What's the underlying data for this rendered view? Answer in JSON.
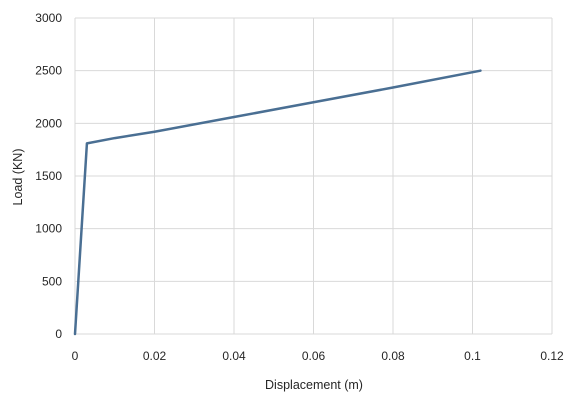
{
  "chart_data": {
    "type": "line",
    "title": "",
    "xlabel": "Displacement (m)",
    "ylabel": "Load (KN)",
    "xlim": [
      0,
      0.12
    ],
    "ylim": [
      0,
      3000
    ],
    "xticks": [
      0,
      0.02,
      0.04,
      0.06,
      0.08,
      0.1,
      0.12
    ],
    "xtick_labels": [
      "0",
      "0.02",
      "0.04",
      "0.06",
      "0.08",
      "0.1",
      "0.12"
    ],
    "yticks": [
      0,
      500,
      1000,
      1500,
      2000,
      2500,
      3000
    ],
    "ytick_labels": [
      "0",
      "500",
      "1000",
      "1500",
      "2000",
      "2500",
      "3000"
    ],
    "grid": true,
    "legend": "none",
    "series": [
      {
        "color": "#4a6f93",
        "x": [
          0,
          0.003,
          0.01,
          0.02,
          0.04,
          0.06,
          0.08,
          0.102
        ],
        "y": [
          0,
          1810,
          1860,
          1920,
          2060,
          2200,
          2340,
          2500
        ]
      }
    ]
  }
}
